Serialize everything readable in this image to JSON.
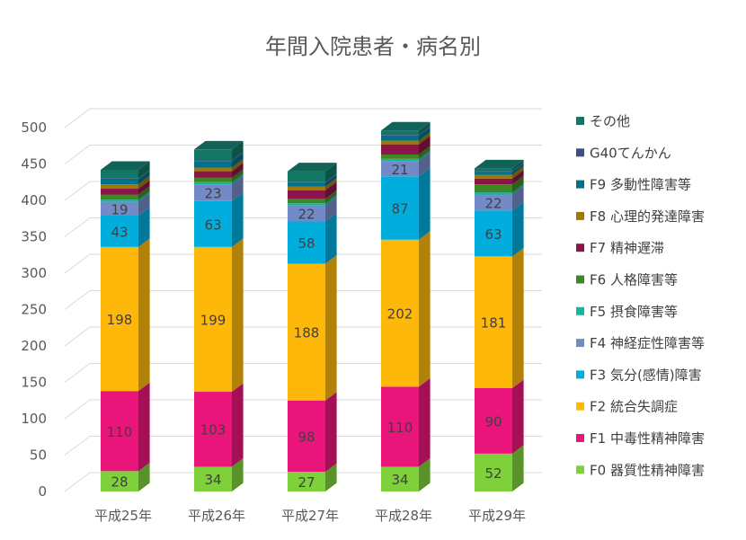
{
  "chart_data": {
    "type": "bar",
    "stacked": true,
    "title": "年間入院患者・病名別",
    "categories": [
      "平成25年",
      "平成26年",
      "平成27年",
      "平成28年",
      "平成29年"
    ],
    "ylim": [
      0,
      500
    ],
    "yticks": [
      "0",
      "50",
      "100",
      "150",
      "200",
      "250",
      "300",
      "350",
      "400",
      "450",
      "500"
    ],
    "grid": true,
    "legend_position": "right",
    "series": [
      {
        "name": "F0 器質性精神障害",
        "color": "#7fd13b",
        "values": [
          28,
          34,
          27,
          34,
          52
        ],
        "labels": [
          "28",
          "34",
          "27",
          "34",
          "52"
        ]
      },
      {
        "name": "F1 中毒性精神障害",
        "color": "#ea157a",
        "values": [
          110,
          103,
          98,
          110,
          90
        ],
        "labels": [
          "110",
          "103",
          "98",
          "110",
          "90"
        ]
      },
      {
        "name": "F2 統合失調症",
        "color": "#feb80a",
        "values": [
          198,
          199,
          188,
          202,
          181
        ],
        "labels": [
          "198",
          "199",
          "188",
          "202",
          "181"
        ]
      },
      {
        "name": "F3 気分(感情)障害",
        "color": "#00addc",
        "values": [
          43,
          63,
          58,
          87,
          63
        ],
        "labels": [
          "43",
          "63",
          "58",
          "87",
          "63"
        ]
      },
      {
        "name": "F4 神経症性障害等",
        "color": "#738ac8",
        "values": [
          19,
          23,
          22,
          21,
          22
        ],
        "labels": [
          "19",
          "23",
          "22",
          "21",
          "22"
        ]
      },
      {
        "name": "F5 摂食障害等",
        "color": "#1ab39f",
        "values": [
          3,
          3,
          3,
          3,
          3
        ],
        "labels": []
      },
      {
        "name": "F6 人格障害等",
        "color": "#3e8725",
        "values": [
          7,
          6,
          6,
          6,
          11
        ],
        "labels": []
      },
      {
        "name": "F7 精神遅滞",
        "color": "#8b1448",
        "values": [
          8,
          9,
          12,
          14,
          8
        ],
        "labels": []
      },
      {
        "name": "F8 心理的発達障害",
        "color": "#a07807",
        "values": [
          6,
          5,
          5,
          5,
          5
        ],
        "labels": []
      },
      {
        "name": "F9 多動性障害等",
        "color": "#00708b",
        "values": [
          7,
          9,
          5,
          7,
          4
        ],
        "labels": []
      },
      {
        "name": "G40てんかん",
        "color": "#3b4f8b",
        "values": [
          1,
          1,
          1,
          1,
          1
        ],
        "labels": []
      },
      {
        "name": "その他",
        "color": "#137565",
        "values": [
          12,
          15,
          15,
          6,
          4
        ],
        "labels": []
      }
    ]
  }
}
